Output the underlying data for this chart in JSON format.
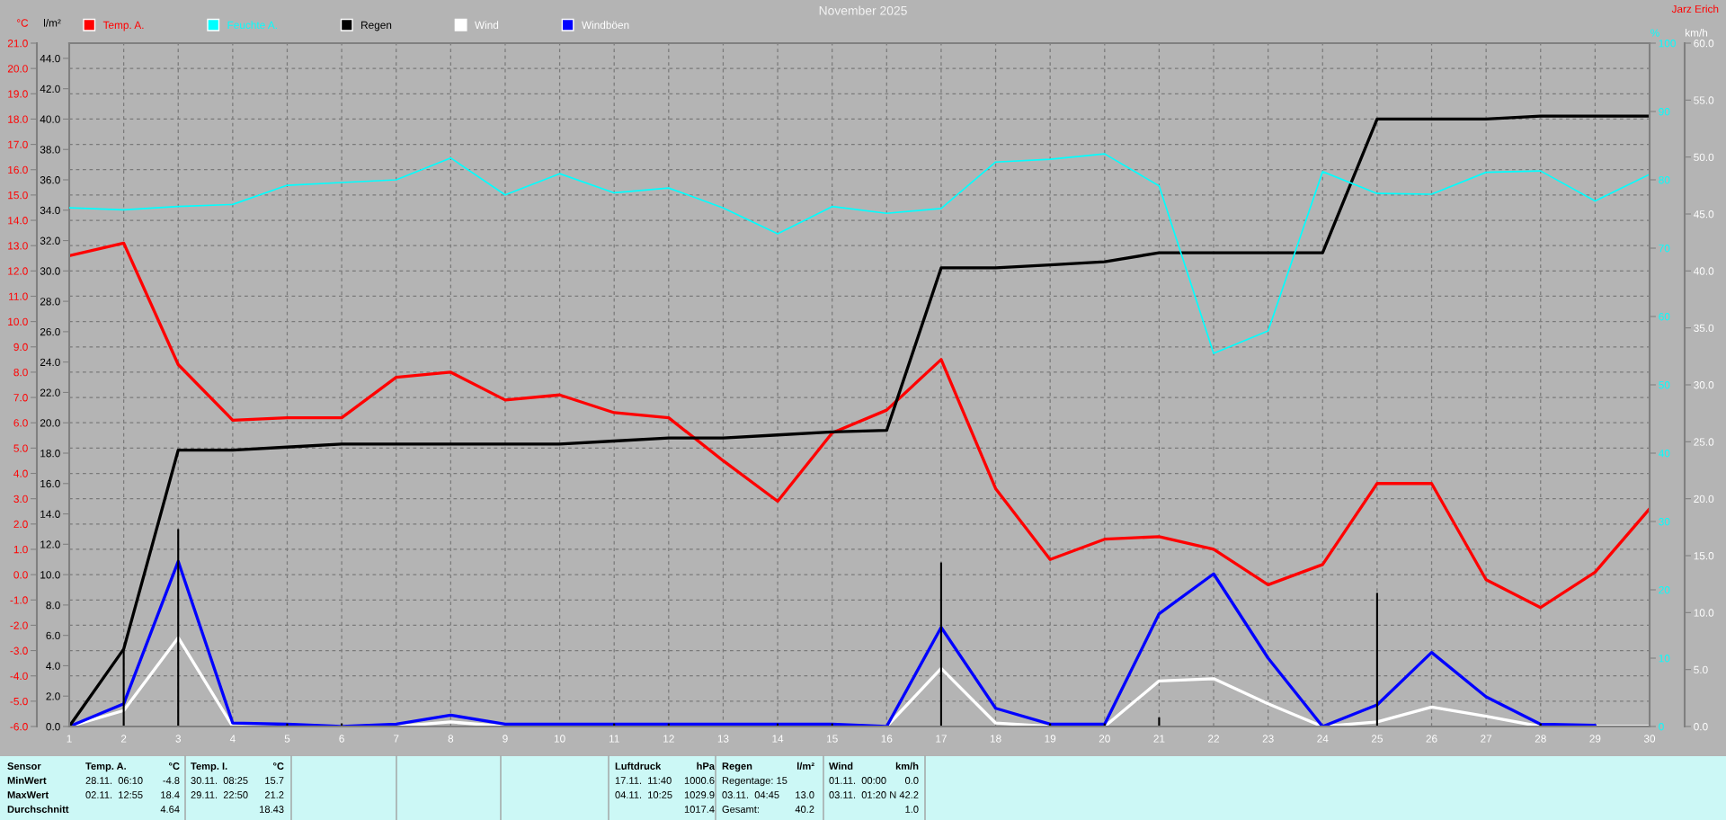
{
  "chart_data": [
    {
      "type": "line",
      "title": "November 2025",
      "x": [
        1,
        2,
        3,
        4,
        5,
        6,
        7,
        8,
        9,
        10,
        11,
        12,
        13,
        14,
        15,
        16,
        17,
        18,
        19,
        20,
        21,
        22,
        23,
        24,
        25,
        26,
        27,
        28,
        29,
        30
      ],
      "xlim": [
        1,
        30
      ],
      "xticks": [
        1,
        2,
        3,
        4,
        5,
        6,
        7,
        8,
        9,
        10,
        11,
        12,
        13,
        14,
        15,
        16,
        17,
        18,
        19,
        20,
        21,
        22,
        23,
        24,
        25,
        26,
        27,
        28,
        29,
        30
      ],
      "ylabel": "°C",
      "ylim": [
        -6.0,
        21.0
      ],
      "yticks": [
        {
          "value": -6,
          "label": "-6.0"
        },
        {
          "value": -5,
          "label": "-5.0"
        },
        {
          "value": -4,
          "label": "-4.0"
        },
        {
          "value": -3,
          "label": "-3.0"
        },
        {
          "value": -2,
          "label": "-2.0"
        },
        {
          "value": -1,
          "label": "-1.0"
        },
        {
          "value": 0,
          "label": "0.0"
        },
        {
          "value": 1,
          "label": "1.0"
        },
        {
          "value": 2,
          "label": "2.0"
        },
        {
          "value": 3,
          "label": "3.0"
        },
        {
          "value": 4,
          "label": "4.0"
        },
        {
          "value": 5,
          "label": "5.0"
        },
        {
          "value": 6,
          "label": "6.0"
        },
        {
          "value": 7,
          "label": "7.0"
        },
        {
          "value": 8,
          "label": "8.0"
        },
        {
          "value": 9,
          "label": "9.0"
        },
        {
          "value": 10,
          "label": "10.0"
        },
        {
          "value": 11,
          "label": "11.0"
        },
        {
          "value": 12,
          "label": "12.0"
        },
        {
          "value": 13,
          "label": "13.0"
        },
        {
          "value": 14,
          "label": "14.0"
        },
        {
          "value": 15,
          "label": "15.0"
        },
        {
          "value": 16,
          "label": "16.0"
        },
        {
          "value": 17,
          "label": "17.0"
        },
        {
          "value": 18,
          "label": "18.0"
        },
        {
          "value": 19,
          "label": "19.0"
        },
        {
          "value": 20,
          "label": "20.0"
        },
        {
          "value": 21,
          "label": "21.0"
        }
      ],
      "y2label": "l/m²",
      "y2lim": [
        0.0,
        45.0
      ],
      "y2ticks": [
        {
          "value": 0,
          "label": "0.0"
        },
        {
          "value": 2,
          "label": "2.0"
        },
        {
          "value": 4,
          "label": "4.0"
        },
        {
          "value": 6,
          "label": "6.0"
        },
        {
          "value": 8,
          "label": "8.0"
        },
        {
          "value": 10,
          "label": "10.0"
        },
        {
          "value": 12,
          "label": "12.0"
        },
        {
          "value": 14,
          "label": "14.0"
        },
        {
          "value": 16,
          "label": "16.0"
        },
        {
          "value": 18,
          "label": "18.0"
        },
        {
          "value": 20,
          "label": "20.0"
        },
        {
          "value": 22,
          "label": "22.0"
        },
        {
          "value": 24,
          "label": "24.0"
        },
        {
          "value": 26,
          "label": "26.0"
        },
        {
          "value": 28,
          "label": "28.0"
        },
        {
          "value": 30,
          "label": "30.0"
        },
        {
          "value": 32,
          "label": "32.0"
        },
        {
          "value": 34,
          "label": "34.0"
        },
        {
          "value": 36,
          "label": "36.0"
        },
        {
          "value": 38,
          "label": "38.0"
        },
        {
          "value": 40,
          "label": "40.0"
        },
        {
          "value": 42,
          "label": "42.0"
        },
        {
          "value": 44,
          "label": "44.0"
        }
      ],
      "y3label": "%",
      "y3lim": [
        0,
        100
      ],
      "y3ticks": [
        0,
        10,
        20,
        30,
        40,
        50,
        60,
        70,
        80,
        90,
        100
      ],
      "grid": true,
      "legend": "top left",
      "series": [
        {
          "name": "Temp. A.",
          "color": "#ff0000",
          "values": [
            12.6,
            13.1,
            8.3,
            6.1,
            6.2,
            6.2,
            7.8,
            8.0,
            6.9,
            7.1,
            6.4,
            6.2,
            4.5,
            2.9,
            5.6,
            6.5,
            8.5,
            3.4,
            0.6,
            1.4,
            1.5,
            1.0,
            -0.4,
            0.4,
            3.6,
            3.6,
            -0.2,
            -1.3,
            0.1,
            2.6
          ]
        },
        {
          "name": "Feuchte A.",
          "axis": "y3",
          "color": "#00ffff",
          "values": [
            75.9,
            75.6,
            76.1,
            76.4,
            79.2,
            79.6,
            80.0,
            83.2,
            77.8,
            80.9,
            78.1,
            78.8,
            75.9,
            72.1,
            76.1,
            75.1,
            75.8,
            82.6,
            83.0,
            83.8,
            79.1,
            54.6,
            57.9,
            81.2,
            78.0,
            77.9,
            81.1,
            81.3,
            76.9,
            80.8
          ]
        },
        {
          "name": "Regen",
          "axis": "y2",
          "color": "#000000",
          "values": [
            0.0,
            5.1,
            18.2,
            18.2,
            18.4,
            18.6,
            18.6,
            18.6,
            18.6,
            18.6,
            18.8,
            19.0,
            19.0,
            19.2,
            19.4,
            19.5,
            30.2,
            30.2,
            30.4,
            30.6,
            31.2,
            31.2,
            31.2,
            31.2,
            40.0,
            40.0,
            40.0,
            40.2,
            40.2,
            40.2
          ]
        },
        {
          "type": "bar",
          "axis": "y2",
          "color": "#000000",
          "values": [
            null,
            5.1,
            13.0,
            null,
            0.2,
            0.2,
            null,
            null,
            null,
            null,
            0.2,
            0.2,
            null,
            0.2,
            0.2,
            null,
            10.8,
            null,
            0.2,
            0.2,
            0.6,
            null,
            null,
            null,
            8.8,
            null,
            null,
            0.2,
            null,
            null
          ]
        }
      ],
      "annotations": [
        "Jarz Erich",
        "Sensor",
        "MinWert",
        "MaxWert",
        "Durchschnitt",
        "Temp. A.",
        "°C",
        "28.11.  06:10",
        "-4.8",
        "02.11.  12:55",
        "18.4",
        "4.64",
        "Temp. I.",
        "°C",
        "30.11.  08:25",
        "15.7",
        "29.11.  22:50",
        "21.2",
        "18.43",
        "Luftdruck",
        "hPa",
        "17.11.  11:40",
        "1000.6",
        "04.11.  10:25",
        "1029.9",
        "1017.4",
        "Regen",
        "l/m²",
        "Regentage: 15",
        "03.11.  04:45",
        "13.0",
        "Gesamt:",
        "40.2",
        "Wind",
        "km/h",
        "01.11.  00:00",
        "0.0",
        "03.11.  01:20",
        "N 42.2",
        "1.0"
      ]
    },
    {
      "type": "line",
      "tick_labels": "y",
      "legend": "top left",
      "x": [
        1,
        2,
        3,
        4,
        5,
        6,
        7,
        8,
        9,
        10,
        11,
        12,
        13,
        14,
        15,
        16,
        17,
        18,
        19,
        20,
        21,
        22,
        23,
        24,
        25,
        26,
        27,
        28,
        29,
        30
      ],
      "xlim": [
        1,
        30
      ],
      "ylabel": "km/h",
      "ylim": [
        0.0,
        60.0
      ],
      "yticks": [
        {
          "value": 0,
          "label": "0.0"
        },
        {
          "value": 5,
          "label": "5.0"
        },
        {
          "value": 10,
          "label": "10.0"
        },
        {
          "value": 15,
          "label": "15.0"
        },
        {
          "value": 20,
          "label": "20.0"
        },
        {
          "value": 25,
          "label": "25.0"
        },
        {
          "value": 30,
          "label": "30.0"
        },
        {
          "value": 35,
          "label": "35.0"
        },
        {
          "value": 40,
          "label": "40.0"
        },
        {
          "value": 45,
          "label": "45.0"
        },
        {
          "value": 50,
          "label": "50.0"
        },
        {
          "value": 55,
          "label": "55.0"
        },
        {
          "value": 60,
          "label": "60.0"
        }
      ],
      "series": [
        {
          "name": "Wind",
          "color": "#ffffff",
          "values": [
            0.0,
            1.4,
            7.8,
            0.0,
            0.0,
            0.0,
            0.0,
            0.4,
            0.0,
            0.0,
            0.0,
            0.0,
            0.0,
            0.0,
            0.0,
            0.0,
            5.1,
            0.3,
            0.0,
            0.0,
            4.0,
            4.2,
            2.0,
            0.0,
            0.4,
            1.7,
            0.9,
            0.0,
            0.0,
            0.0
          ]
        },
        {
          "name": "Windböen",
          "color": "#0000ff",
          "values": [
            0.0,
            2.0,
            14.5,
            0.3,
            0.2,
            0.0,
            0.2,
            1.0,
            0.2,
            0.2,
            0.2,
            0.2,
            0.2,
            0.2,
            0.2,
            0.0,
            8.7,
            1.6,
            0.2,
            0.2,
            9.9,
            13.4,
            6.0,
            0.0,
            1.9,
            6.5,
            2.6,
            0.2,
            0.1,
            null
          ]
        }
      ]
    }
  ]
}
